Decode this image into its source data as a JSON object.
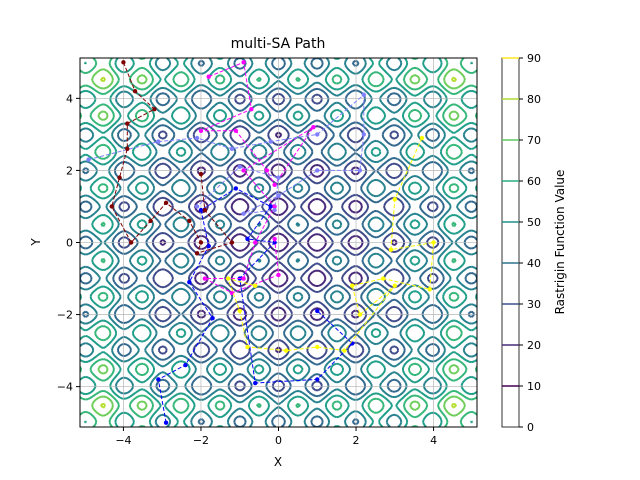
{
  "chart_data": {
    "type": "contour",
    "title": "multi-SA Path",
    "xlabel": "X",
    "ylabel": "Y",
    "xlim": [
      -5.12,
      5.12
    ],
    "ylim": [
      -5.12,
      5.12
    ],
    "xticks": [
      -4,
      -2,
      0,
      2,
      4
    ],
    "yticks": [
      -4,
      -2,
      0,
      2,
      4
    ],
    "grid": true,
    "surface": "Rastrigin function f(x,y) = 20 + x^2 - 10cos(2πx) + y^2 - 10cos(2πy)",
    "contour_levels": [
      10,
      20,
      30,
      40,
      50,
      60,
      70,
      80,
      90
    ],
    "colorbar": {
      "label": "Rastrigin Function Value",
      "ticks": [
        0,
        10,
        20,
        30,
        40,
        50,
        60,
        70,
        80,
        90
      ],
      "colors": [
        "#440154",
        "#472d7b",
        "#3b528b",
        "#2c728e",
        "#21918c",
        "#28ae80",
        "#5ec962",
        "#addc30",
        "#fde725"
      ]
    },
    "series": [
      {
        "color": "#0000ff",
        "points": [
          [
            -2.9,
            -5.0
          ],
          [
            -3.1,
            -3.8
          ],
          [
            -2.4,
            -3.4
          ],
          [
            -1.7,
            -2.1
          ],
          [
            -2.3,
            -1.1
          ],
          [
            -1.8,
            -0.1
          ],
          [
            -2.0,
            0.9
          ],
          [
            -1.1,
            1.5
          ],
          [
            -0.2,
            1.0
          ],
          [
            -0.8,
            0.1
          ],
          [
            -0.1,
            0.0
          ],
          [
            -1.0,
            -1.0
          ],
          [
            -0.6,
            -3.9
          ],
          [
            1.0,
            -3.8
          ],
          [
            1.9,
            -2.8
          ],
          [
            1.0,
            -1.9
          ]
        ]
      },
      {
        "color": "#ff00ff",
        "points": [
          [
            -1.8,
            4.6
          ],
          [
            -0.9,
            5.0
          ],
          [
            -0.7,
            3.7
          ],
          [
            -2.0,
            3.1
          ],
          [
            -1.1,
            3.1
          ],
          [
            -0.3,
            2.0
          ],
          [
            -0.1,
            1.6
          ],
          [
            0.9,
            3.2
          ],
          [
            -0.9,
            2.0
          ],
          [
            -0.1,
            1.0
          ],
          [
            -0.6,
            0.0
          ],
          [
            -0.9,
            -1.0
          ],
          [
            -1.9,
            -1.0
          ],
          [
            -1.2,
            -1.4
          ],
          [
            0.0,
            -0.9
          ],
          [
            -0.1,
            0.1
          ]
        ]
      },
      {
        "color": "#ffff00",
        "points": [
          [
            3.7,
            2.9
          ],
          [
            3.0,
            1.2
          ],
          [
            2.9,
            -0.2
          ],
          [
            4.0,
            0.0
          ],
          [
            3.9,
            -1.3
          ],
          [
            2.7,
            -1.0
          ],
          [
            1.9,
            -1.2
          ],
          [
            2.1,
            -2.0
          ],
          [
            3.0,
            -1.2
          ],
          [
            1.7,
            -3.0
          ],
          [
            1.0,
            -2.9
          ],
          [
            0.2,
            -3.0
          ],
          [
            -0.8,
            -2.9
          ],
          [
            -1.0,
            -1.9
          ],
          [
            -1.3,
            -1.0
          ],
          [
            -0.6,
            -1.2
          ]
        ]
      },
      {
        "color": "#8080ff",
        "points": [
          [
            -4.9,
            2.3
          ],
          [
            -3.1,
            2.8
          ],
          [
            -2.1,
            2.9
          ],
          [
            -1.2,
            2.6
          ],
          [
            -0.2,
            2.8
          ],
          [
            1.0,
            3.0
          ],
          [
            2.2,
            4.1
          ],
          [
            2.2,
            3.0
          ],
          [
            2.1,
            2.0
          ],
          [
            1.0,
            2.0
          ],
          [
            0.0,
            1.3
          ],
          [
            -0.9,
            0.8
          ],
          [
            -0.1,
            0.9
          ],
          [
            0.0,
            1.8
          ],
          [
            -1.0,
            2.1
          ],
          [
            -2.1,
            1.0
          ]
        ]
      },
      {
        "color": "#800000",
        "points": [
          [
            -4.0,
            5.0
          ],
          [
            -3.7,
            4.2
          ],
          [
            -3.2,
            3.7
          ],
          [
            -3.9,
            3.3
          ],
          [
            -3.9,
            2.6
          ],
          [
            -4.1,
            1.8
          ],
          [
            -4.3,
            1.0
          ],
          [
            -3.8,
            0.0
          ],
          [
            -3.3,
            0.6
          ],
          [
            -2.9,
            1.1
          ],
          [
            -2.3,
            0.6
          ],
          [
            -2.0,
            0.0
          ],
          [
            -2.1,
            -0.3
          ],
          [
            -1.2,
            0.0
          ],
          [
            -1.9,
            0.9
          ],
          [
            -2.0,
            1.9
          ]
        ]
      }
    ]
  }
}
